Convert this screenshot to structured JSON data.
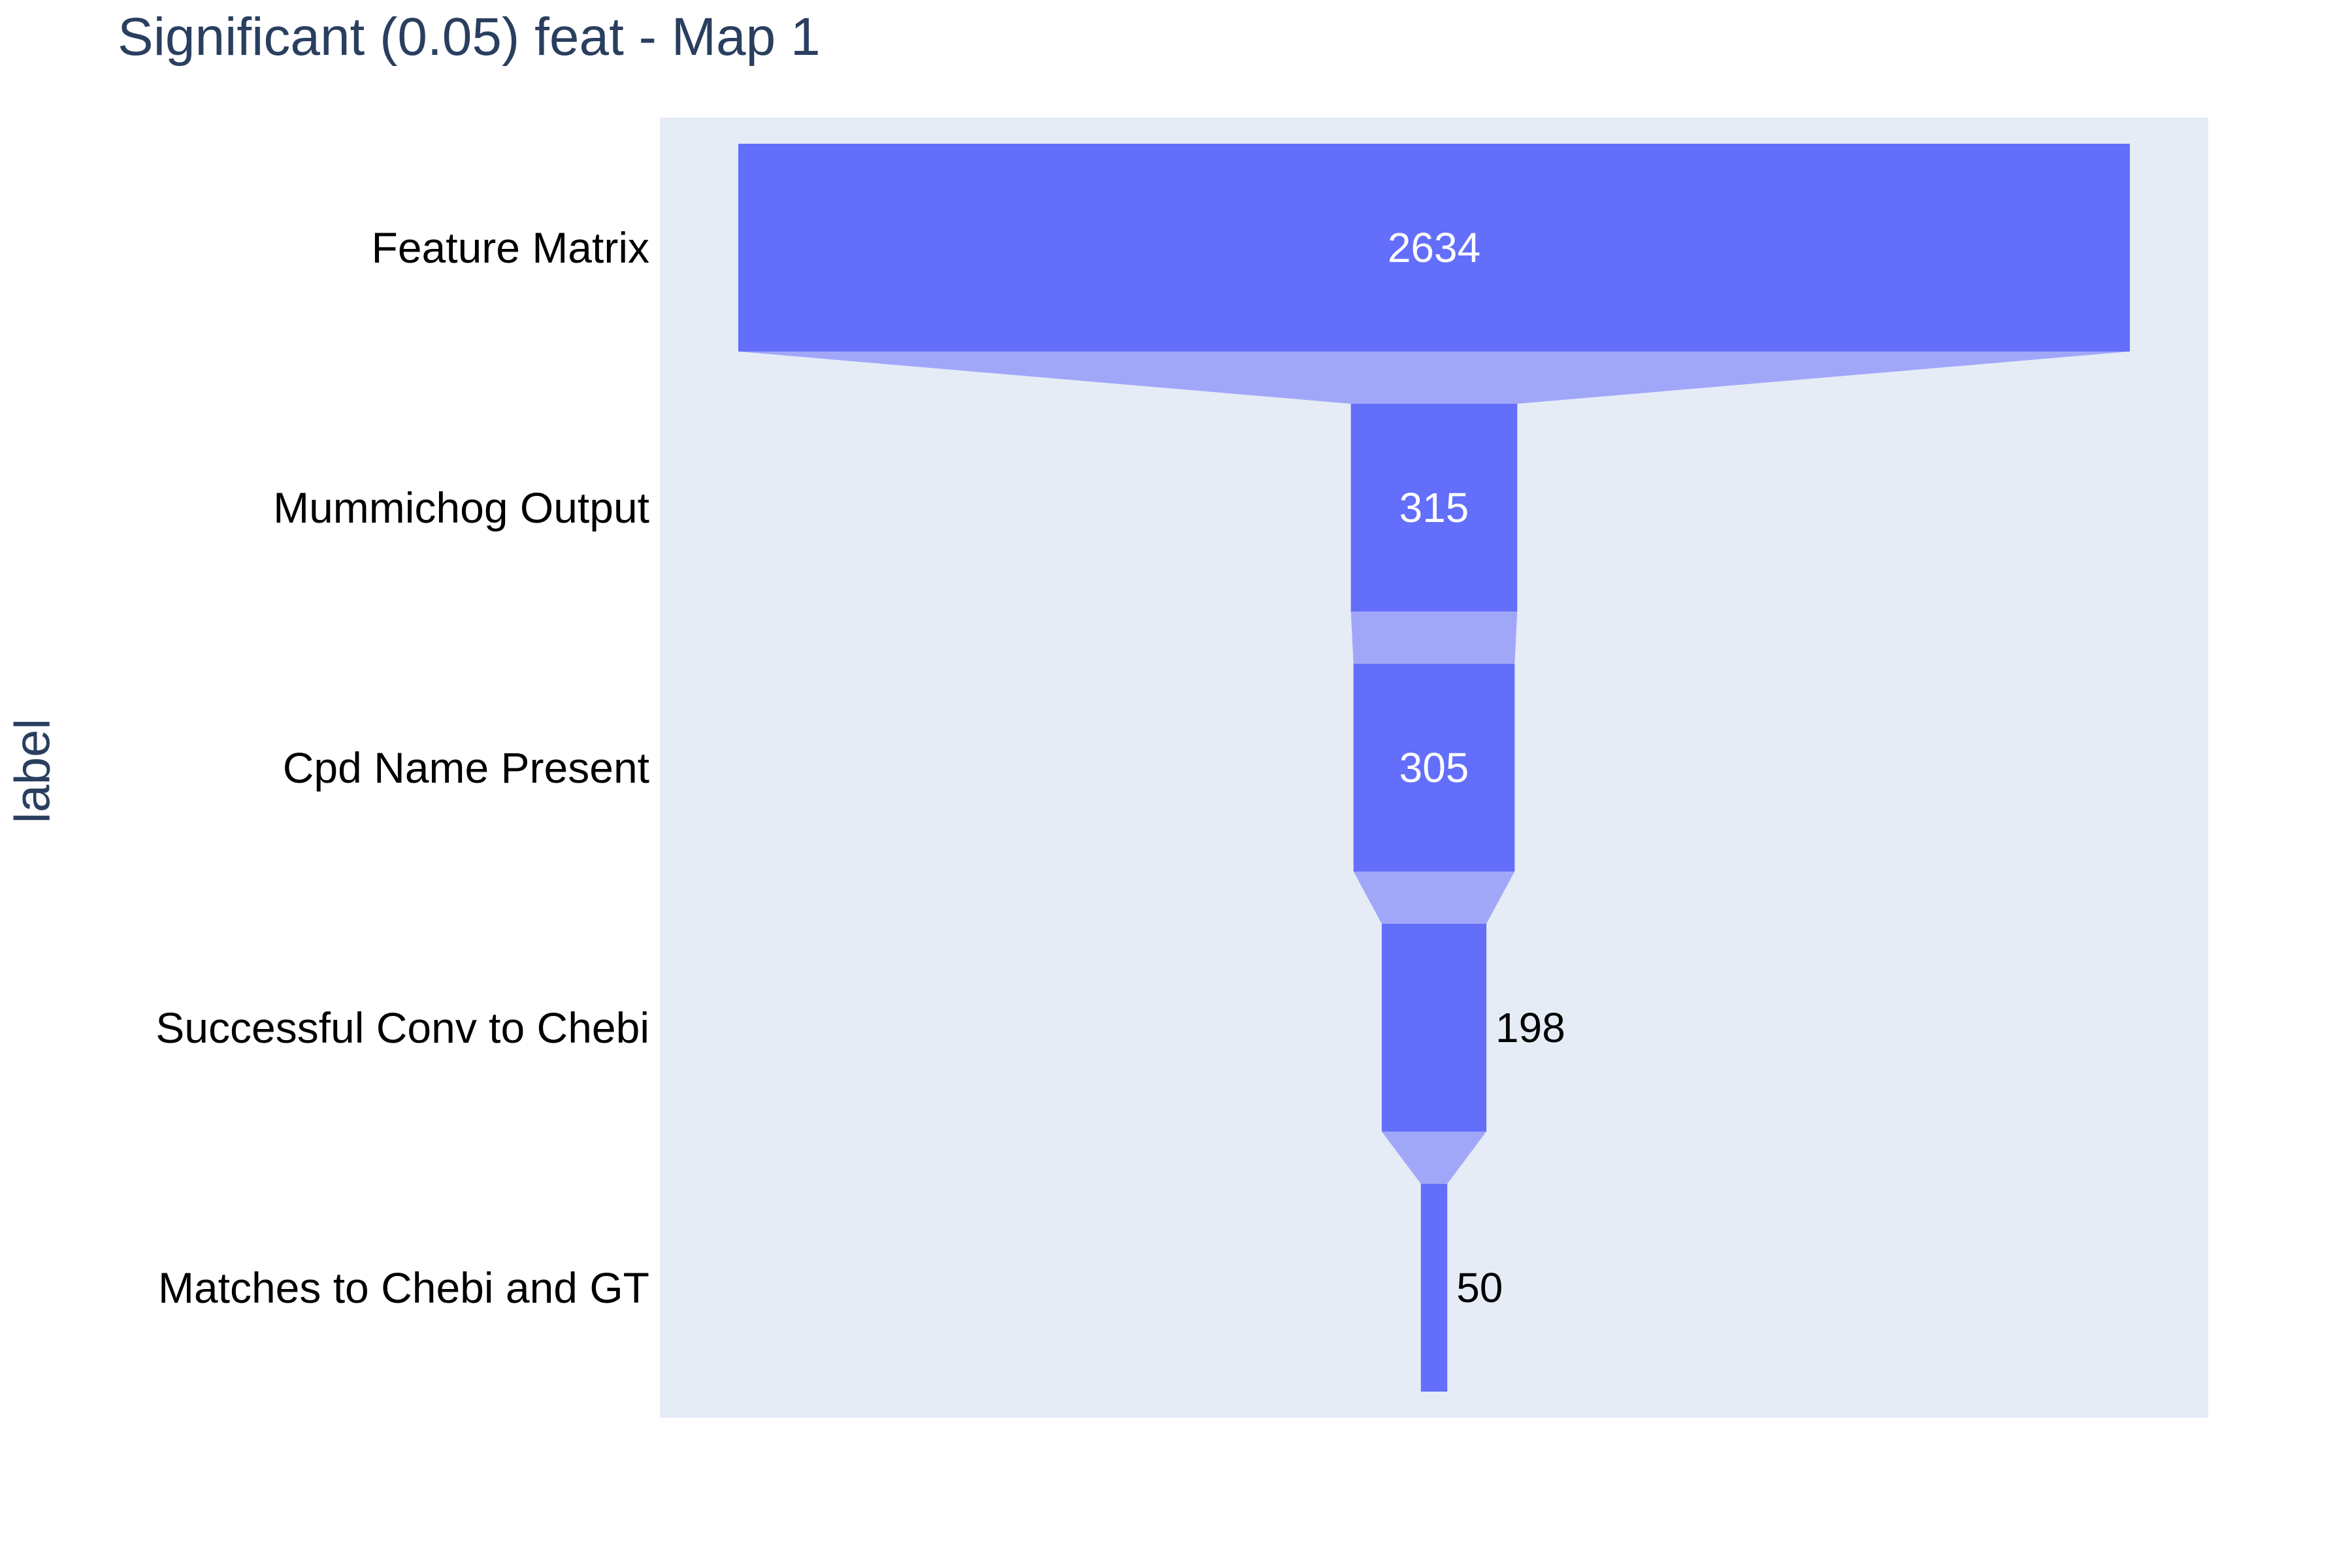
{
  "chart_data": {
    "type": "funnel",
    "title": "Significant (0.05) feat - Map 1",
    "ylabel": "label",
    "xlabel": "",
    "categories": [
      "Feature Matrix",
      "Mummichog Output",
      "Cpd Name Present",
      "Successful Conv to Chebi",
      "Matches to Chebi and GT"
    ],
    "values": [
      2634,
      315,
      305,
      198,
      50
    ],
    "colors": {
      "bar": "#636efa",
      "connector": "#a1a7f8",
      "plot_bg": "#e5ecf6",
      "label_inside": "#ffffff",
      "label_outside": "#000000",
      "title": "#2a3f5f"
    }
  }
}
